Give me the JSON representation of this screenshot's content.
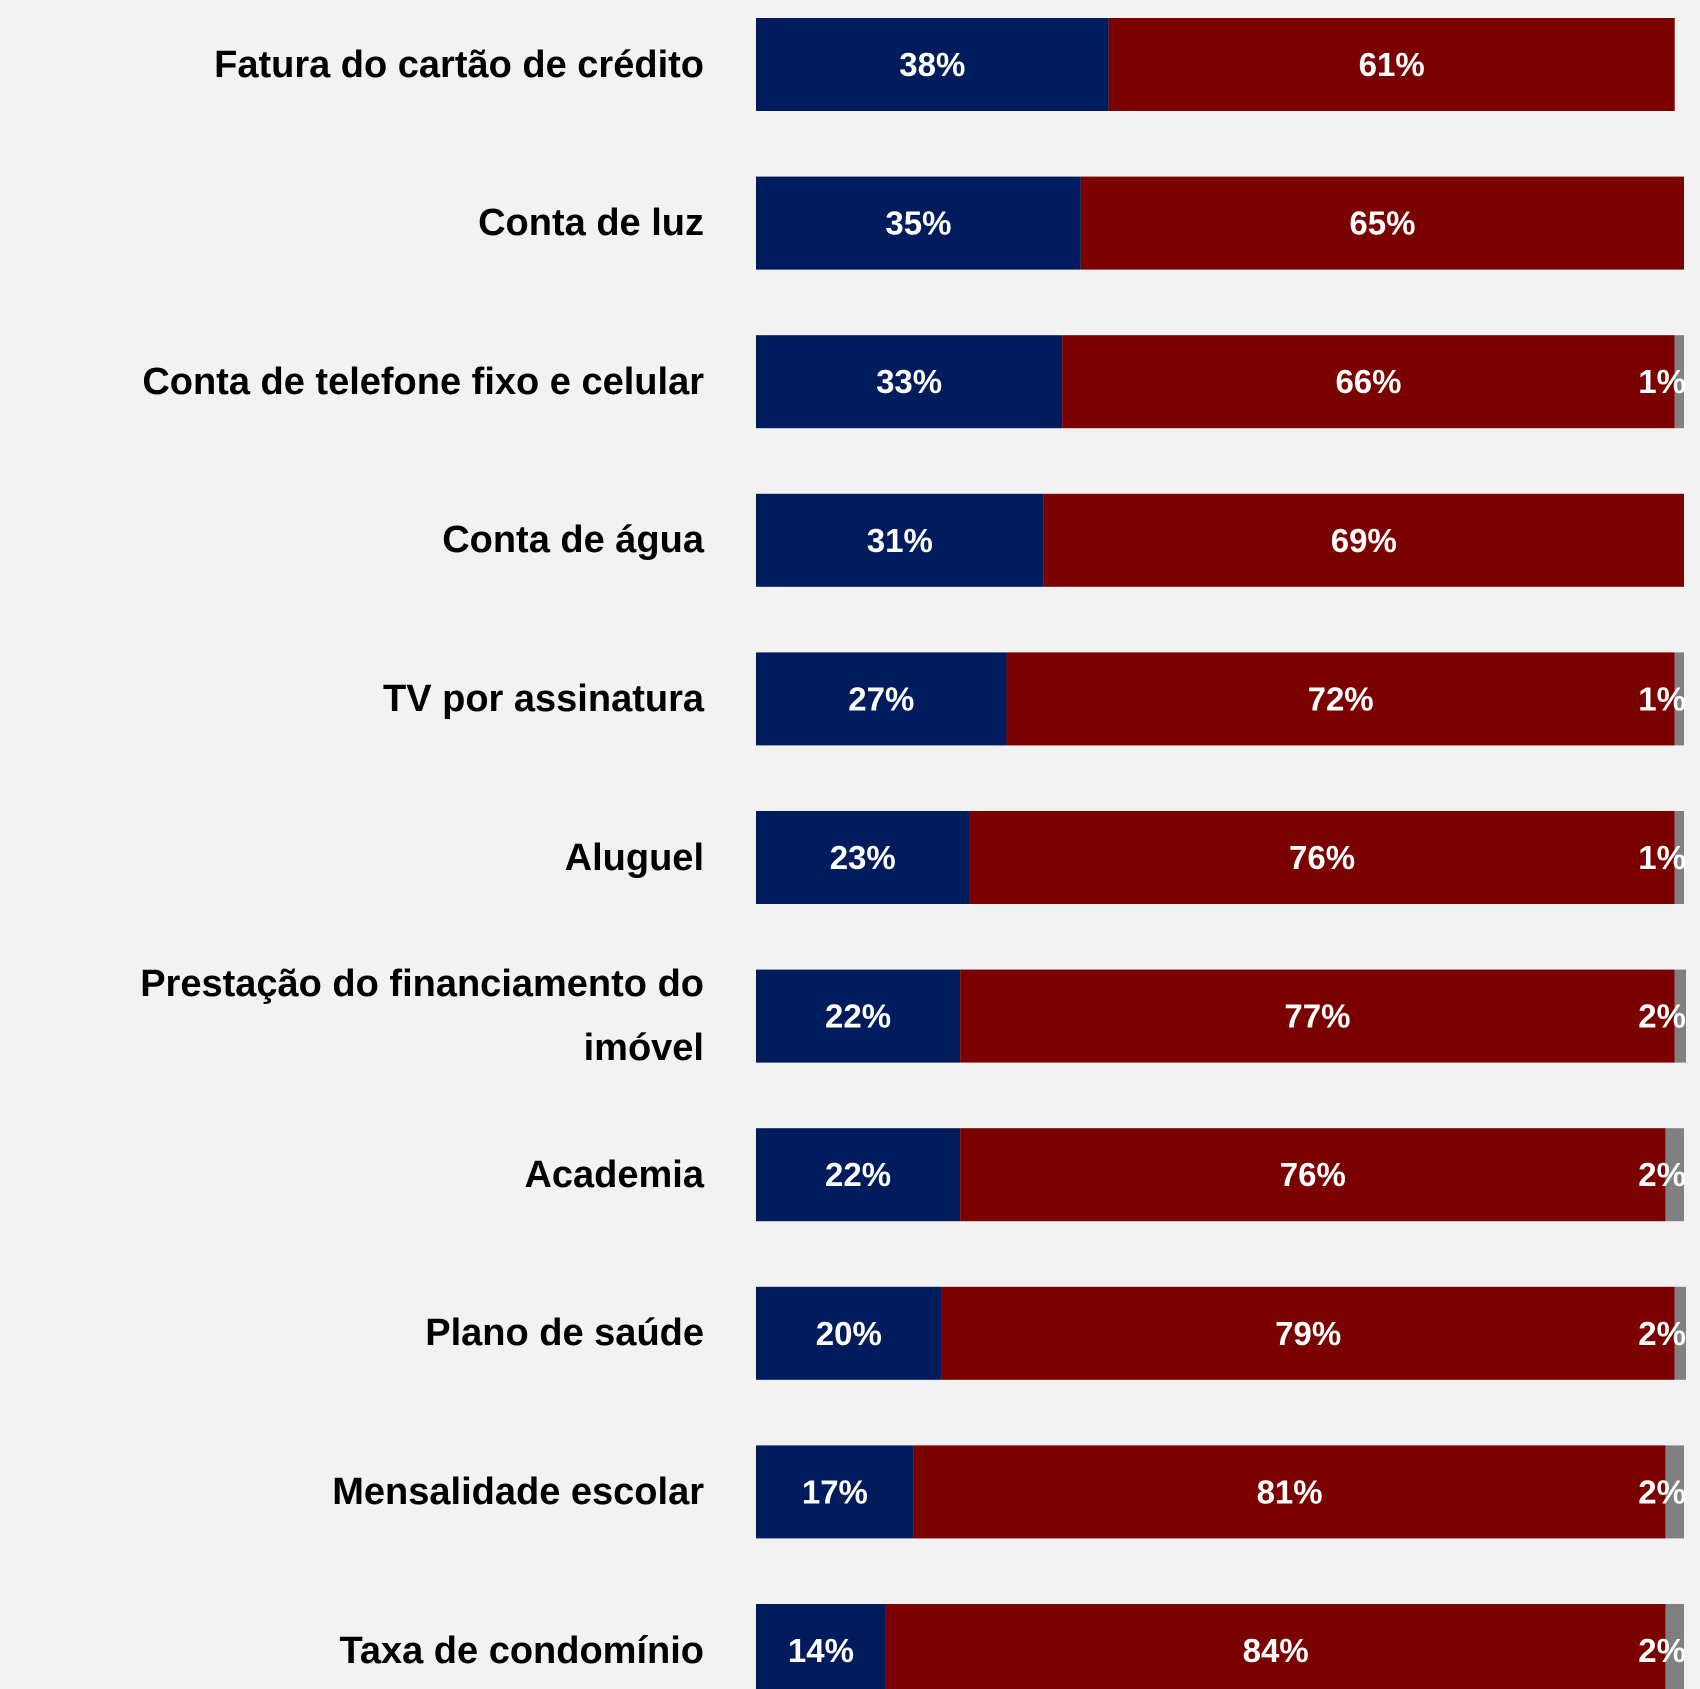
{
  "chart_data": {
    "type": "stacked-barh",
    "categories": [
      "Fatura do cartão de crédito",
      "Conta de luz",
      "Conta de telefone fixo e celular",
      "Conta de água",
      "TV por assinatura",
      "Aluguel",
      "Prestação do financiamento do imóvel",
      "Academia",
      "Plano de saúde",
      "Mensalidade escolar",
      "Taxa de condomínio"
    ],
    "xlim": [
      0,
      100
    ],
    "series": [
      {
        "color": "#001c5c",
        "values": [
          38,
          35,
          33,
          31,
          27,
          23,
          22,
          22,
          20,
          17,
          14
        ],
        "value_labels": [
          "38%",
          "35%",
          "33%",
          "31%",
          "27%",
          "23%",
          "22%",
          "22%",
          "20%",
          "17%",
          "14%"
        ]
      },
      {
        "color": "#7b0000",
        "values": [
          61,
          65,
          66,
          69,
          72,
          76,
          77,
          76,
          79,
          81,
          84
        ],
        "value_labels": [
          "61%",
          "65%",
          "66%",
          "69%",
          "72%",
          "76%",
          "77%",
          "76%",
          "79%",
          "81%",
          "84%"
        ]
      },
      {
        "color": "#808080",
        "values": [
          null,
          null,
          1,
          null,
          1,
          1,
          2,
          2,
          2,
          2,
          2
        ],
        "value_labels": [
          null,
          null,
          "1%",
          null,
          "1%",
          "1%",
          "2%",
          "2%",
          "2%",
          "2%",
          "2%"
        ]
      }
    ]
  }
}
